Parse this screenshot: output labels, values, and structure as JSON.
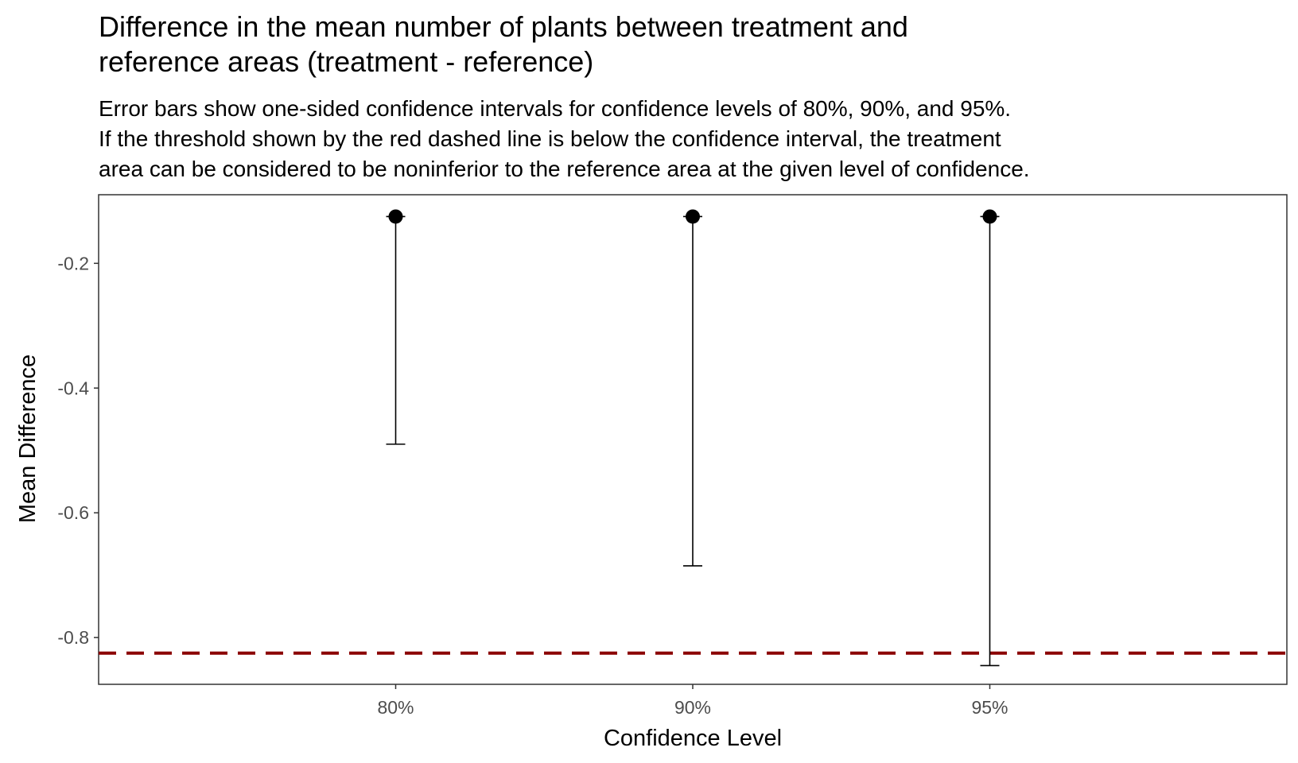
{
  "chart_data": {
    "type": "errorbar",
    "title": "Difference in the mean number of plants between treatment and\nreference areas (treatment - reference)",
    "subtitle": "Error bars show one-sided confidence intervals for confidence levels of 80%, 90%, and 95%.\nIf the threshold shown by the red dashed line is below the confidence interval, the treatment\narea can be considered to be noninferior to the reference area at the given level of confidence.",
    "xlabel": "Confidence Level",
    "ylabel": "Mean Difference",
    "categories": [
      "80%",
      "90%",
      "95%"
    ],
    "estimate": [
      -0.125,
      -0.125,
      -0.125
    ],
    "lower": [
      -0.49,
      -0.685,
      -0.845
    ],
    "threshold": -0.825,
    "ylim": [
      -0.875,
      -0.09
    ],
    "yticks": [
      -0.2,
      -0.4,
      -0.6,
      -0.8
    ],
    "ytick_labels": [
      "-0.2",
      "-0.4",
      "-0.6",
      "-0.8"
    ],
    "colors": {
      "threshold": "#8b0000",
      "points": "#000000",
      "panel_border": "#333333"
    },
    "grid": false,
    "legend": "none"
  }
}
